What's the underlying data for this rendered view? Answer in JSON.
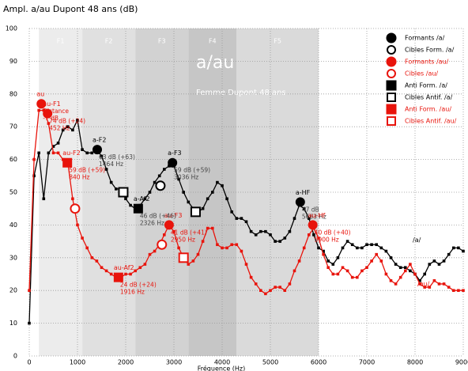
{
  "chart_data": {
    "type": "line",
    "title": "Ampl. a/au Dupont 48 ans (dB)",
    "x_label": "Fréquence (Hz)",
    "heading": "a/au",
    "subheading": "Femme Dupont 48 ans",
    "xlim": [
      0,
      9000
    ],
    "xticks": [
      0,
      1000,
      2000,
      3000,
      4000,
      5000,
      6000,
      7000,
      8000,
      9000
    ],
    "ylim": [
      0,
      100
    ],
    "yticks": [
      0,
      10,
      20,
      30,
      40,
      50,
      60,
      70,
      80,
      90,
      100
    ],
    "grid": true,
    "legend": "top-right",
    "bands": [
      {
        "label": "F1",
        "range": [
          200,
          1100
        ],
        "color": "#ececec"
      },
      {
        "label": "F2",
        "range": [
          1100,
          2200
        ],
        "color": "#e0e0e0"
      },
      {
        "label": "F3",
        "range": [
          2200,
          3300
        ],
        "color": "#d2d2d2"
      },
      {
        "label": "F4",
        "range": [
          3300,
          4300
        ],
        "color": "#c6c6c6"
      },
      {
        "label": "F5",
        "range": [
          4300,
          6000
        ],
        "color": "#dadada"
      }
    ],
    "x": [
      0,
      100,
      200,
      300,
      400,
      500,
      600,
      700,
      800,
      900,
      1000,
      1100,
      1200,
      1300,
      1400,
      1500,
      1600,
      1700,
      1800,
      1900,
      2000,
      2100,
      2200,
      2300,
      2400,
      2500,
      2600,
      2700,
      2800,
      2900,
      3000,
      3100,
      3200,
      3300,
      3400,
      3500,
      3600,
      3700,
      3800,
      3900,
      4000,
      4100,
      4200,
      4300,
      4400,
      4500,
      4600,
      4700,
      4800,
      4900,
      5000,
      5100,
      5200,
      5300,
      5400,
      5500,
      5600,
      5700,
      5800,
      5900,
      6000,
      6100,
      6200,
      6300,
      6400,
      6500,
      6600,
      6700,
      6800,
      6900,
      7000,
      7100,
      7200,
      7300,
      7400,
      7500,
      7600,
      7700,
      7800,
      7900,
      8000,
      8100,
      8200,
      8300,
      8400,
      8500,
      8600,
      8700,
      8800,
      8900,
      9000
    ],
    "series": [
      {
        "name": "/a/",
        "color": "#000000",
        "values": [
          10,
          55,
          62,
          48,
          62,
          64,
          65,
          69,
          70,
          69,
          72,
          63,
          62,
          62,
          63,
          61,
          57,
          53,
          51,
          51,
          48,
          46,
          45,
          46,
          48,
          50,
          53,
          55,
          57,
          58,
          58,
          54,
          50,
          47,
          45,
          44,
          45,
          48,
          50,
          53,
          52,
          48,
          44,
          42,
          42,
          41,
          38,
          37,
          38,
          38,
          37,
          35,
          35,
          36,
          38,
          42,
          46,
          45,
          42,
          37,
          33,
          32,
          29,
          28,
          30,
          33,
          35,
          34,
          33,
          33,
          34,
          34,
          34,
          33,
          32,
          30,
          28,
          27,
          27,
          26,
          25,
          23,
          25,
          28,
          29,
          28,
          29,
          31,
          33,
          33,
          32
        ]
      },
      {
        "name": "/au/",
        "color": "#e8140c",
        "values": [
          20,
          60,
          75,
          75,
          71,
          62,
          62,
          60,
          59,
          48,
          40,
          36,
          33,
          30,
          29,
          27,
          26,
          25,
          24,
          24,
          25,
          25,
          26,
          27,
          28,
          31,
          32,
          34,
          37,
          40,
          38,
          33,
          30,
          28,
          29,
          31,
          35,
          39,
          39,
          34,
          33,
          33,
          34,
          34,
          32,
          28,
          24,
          22,
          20,
          19,
          20,
          21,
          21,
          20,
          22,
          26,
          29,
          33,
          37,
          39,
          36,
          31,
          27,
          25,
          25,
          27,
          26,
          24,
          24,
          26,
          27,
          29,
          31,
          29,
          25,
          23,
          22,
          24,
          26,
          28,
          25,
          22,
          21,
          21,
          23,
          22,
          22,
          21,
          20,
          20,
          20
        ]
      }
    ],
    "markers": [
      {
        "name": "Formants /a/",
        "color": "#000000",
        "shape": "circle",
        "filled": true,
        "points": [
          {
            "x": 1410,
            "y": 63,
            "label": "a-F2",
            "details": [
              "63 dB (+63)",
              "1464 Hz"
            ]
          },
          {
            "x": 2970,
            "y": 59,
            "label": "a-F3",
            "details": [
              "59 dB (+59)",
              "3036 Hz"
            ]
          },
          {
            "x": 5620,
            "y": 47,
            "label": "a-HF",
            "details": [
              "47 dB",
              "5663 Hz"
            ]
          }
        ]
      },
      {
        "name": "Cibles Form. /a/",
        "color": "#000000",
        "shape": "circle",
        "filled": false,
        "points": [
          {
            "x": 2720,
            "y": 52
          }
        ]
      },
      {
        "name": "Formants /au/",
        "color": "#e8140c",
        "shape": "circle",
        "filled": true,
        "points": [
          {
            "x": 250,
            "y": 77,
            "label": "au",
            "details": [
              "Distance",
              "-7 dB"
            ]
          },
          {
            "x": 380,
            "y": 74,
            "label": "au-F1",
            "details": [
              "74 dB (+24)",
              "452 Hz"
            ]
          },
          {
            "x": 2900,
            "y": 40,
            "label": "au-F3",
            "details": [
              "41 dB (+41)",
              "2950 Hz"
            ]
          },
          {
            "x": 5880,
            "y": 40,
            "label": "au-Hf",
            "details": [
              "40 dB (+40)",
              "5900 Hz"
            ]
          }
        ]
      },
      {
        "name": "Cibles /au/",
        "color": "#e8140c",
        "shape": "circle",
        "filled": false,
        "points": [
          {
            "x": 950,
            "y": 45
          },
          {
            "x": 2750,
            "y": 34
          }
        ]
      },
      {
        "name": "Anti Form. /a/",
        "color": "#000000",
        "shape": "square",
        "filled": true,
        "points": [
          {
            "x": 2260,
            "y": 45,
            "label": "a-Af2",
            "details": [
              "46 dB (+46)",
              "2326 Hz"
            ]
          }
        ]
      },
      {
        "name": "Cibles Antif. /a/",
        "color": "#000000",
        "shape": "square",
        "filled": false,
        "points": [
          {
            "x": 1950,
            "y": 50
          },
          {
            "x": 3450,
            "y": 44
          }
        ]
      },
      {
        "name": "Anti Form. /au/",
        "color": "#e8140c",
        "shape": "square",
        "filled": true,
        "points": [
          {
            "x": 790,
            "y": 59,
            "label": "au-F2",
            "details": [
              "59 dB (+59)",
              "840 Hz"
            ]
          },
          {
            "x": 1850,
            "y": 24,
            "label": "au-Af2",
            "details": [
              "24 dB (+24)",
              "1916 Hz"
            ]
          }
        ]
      },
      {
        "name": "Cibles Antif. /au/",
        "color": "#e8140c",
        "shape": "square",
        "filled": false,
        "points": [
          {
            "x": 3200,
            "y": 30
          }
        ]
      }
    ]
  }
}
